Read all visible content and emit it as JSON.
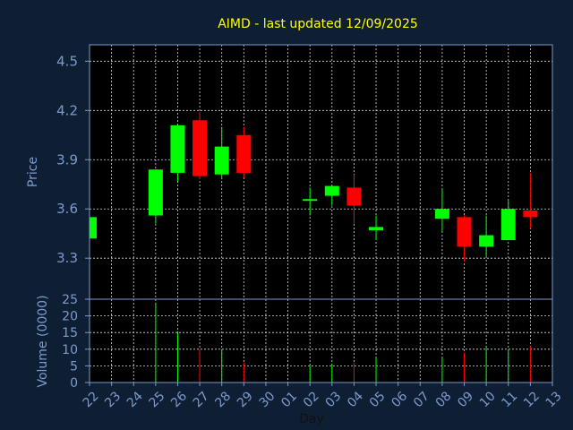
{
  "chart_data": {
    "type": "candlestick",
    "title": "AIMD - last updated 12/09/2025",
    "ylabel": "Price",
    "volume_label": "Volume (0000)",
    "xlabel": "Day",
    "ylim": [
      3.05,
      4.6
    ],
    "y_ticks": [
      "3.3",
      "3.6",
      "3.9",
      "4.2",
      "4.5"
    ],
    "volume_ylim": [
      0,
      25
    ],
    "volume_ticks": [
      "0",
      "5",
      "10",
      "15",
      "20",
      "25"
    ],
    "x_ticks": [
      "22",
      "23",
      "24",
      "25",
      "26",
      "27",
      "28",
      "29",
      "30",
      "01",
      "02",
      "03",
      "04",
      "05",
      "06",
      "07",
      "08",
      "09",
      "10",
      "11",
      "12",
      "13"
    ],
    "colors": {
      "up": "#00ff00",
      "down": "#ff0000",
      "background": "#000000",
      "axis": "#7b9ad0",
      "title": "#ffff00"
    },
    "candles": [
      {
        "day": "22",
        "open": 3.42,
        "close": 3.55,
        "high": 3.56,
        "low": 3.41,
        "volume": 0
      },
      {
        "day": "25",
        "open": 3.56,
        "close": 3.84,
        "high": 3.84,
        "low": 3.51,
        "volume": 24
      },
      {
        "day": "26",
        "open": 3.82,
        "close": 4.11,
        "high": 4.11,
        "low": 3.77,
        "volume": 15
      },
      {
        "day": "27",
        "open": 4.14,
        "close": 3.8,
        "high": 4.19,
        "low": 3.78,
        "volume": 10
      },
      {
        "day": "28",
        "open": 3.81,
        "close": 3.98,
        "high": 4.1,
        "low": 3.78,
        "volume": 10
      },
      {
        "day": "29",
        "open": 4.05,
        "close": 3.82,
        "high": 4.1,
        "low": 3.79,
        "volume": 6
      },
      {
        "day": "02",
        "open": 3.65,
        "close": 3.66,
        "high": 3.73,
        "low": 3.56,
        "volume": 5
      },
      {
        "day": "03",
        "open": 3.68,
        "close": 3.74,
        "high": 3.74,
        "low": 3.62,
        "volume": 5.5
      },
      {
        "day": "04",
        "open": 3.73,
        "close": 3.62,
        "high": 3.81,
        "low": 3.51,
        "volume": 6
      },
      {
        "day": "05",
        "open": 3.47,
        "close": 3.49,
        "high": 3.56,
        "low": 3.41,
        "volume": 7.5
      },
      {
        "day": "08",
        "open": 3.54,
        "close": 3.6,
        "high": 3.72,
        "low": 3.46,
        "volume": 7.5
      },
      {
        "day": "09",
        "open": 3.55,
        "close": 3.37,
        "high": 3.56,
        "low": 3.28,
        "volume": 9
      },
      {
        "day": "10",
        "open": 3.37,
        "close": 3.44,
        "high": 3.56,
        "low": 3.3,
        "volume": 11
      },
      {
        "day": "11",
        "open": 3.41,
        "close": 3.6,
        "high": 3.65,
        "low": 3.41,
        "volume": 10
      },
      {
        "day": "12",
        "open": 3.59,
        "close": 3.55,
        "high": 3.82,
        "low": 3.48,
        "volume": 11
      }
    ]
  }
}
